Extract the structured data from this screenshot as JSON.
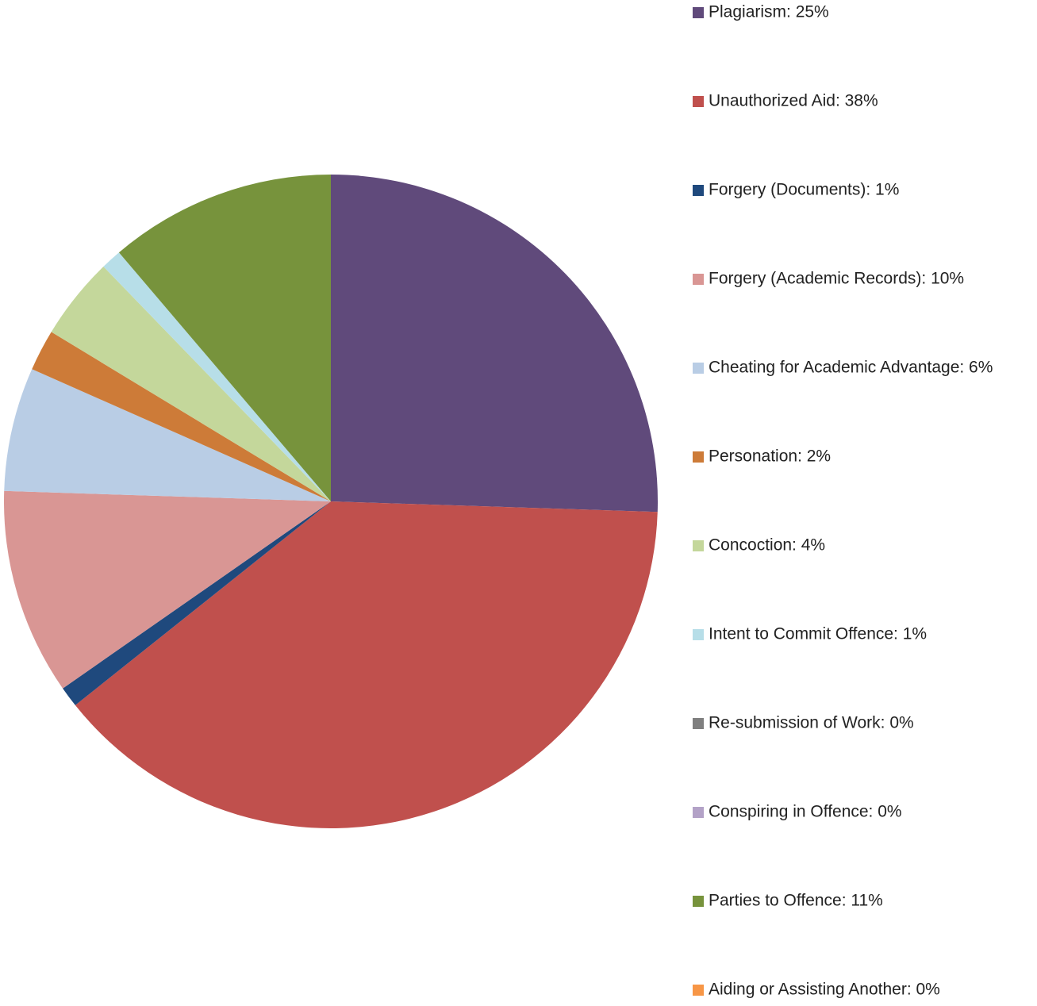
{
  "chart_data": {
    "type": "pie",
    "categories": [
      "Plagiarism: 25%",
      "Unauthorized Aid: 38%",
      "Forgery (Documents): 1%",
      "Forgery (Academic Records): 10%",
      "Cheating for Academic Advantage: 6%",
      "Personation: 2%",
      "Concoction: 4%",
      "Intent to Commit Offence: 1%",
      "Re-submission of Work: 0%",
      "Conspiring in Offence: 0%",
      "Parties to Offence: 11%",
      "Aiding or Assisting Another: 0%"
    ],
    "values": [
      25,
      38,
      1,
      10,
      6,
      2,
      4,
      1,
      0,
      0,
      11,
      0
    ],
    "colors": [
      "#604a7b",
      "#c0504d",
      "#1f497d",
      "#d99694",
      "#b9cde5",
      "#cd7b38",
      "#c4d79b",
      "#b7dee8",
      "#7f7f7f",
      "#b3a2c7",
      "#77933c",
      "#f79646"
    ],
    "legend": "right"
  }
}
